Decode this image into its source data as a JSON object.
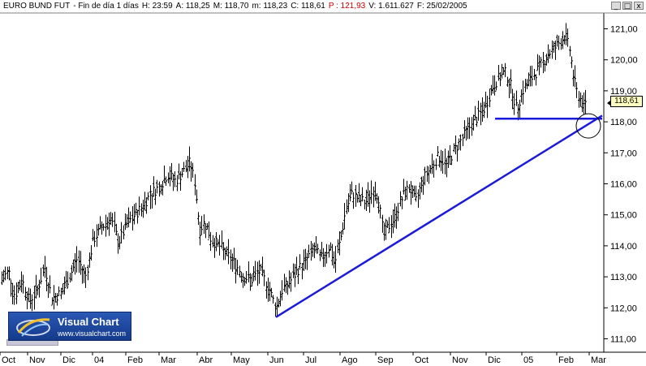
{
  "header": {
    "instrument": "EURO BUND FUT",
    "period": "- Fin de día 1 días",
    "h": "H: 23:59",
    "a": "A: 118,25",
    "m": "M: 118,70",
    "mn": "m: 118,23",
    "c": "C: 118,61",
    "p": "P : 121,93",
    "v": "V: 1.611.627",
    "f": "F: 25/02/2005"
  },
  "window_buttons": [
    "_",
    "□",
    "x"
  ],
  "logo": {
    "title": "Visual Chart",
    "url": "www.visualchart.com"
  },
  "price_tag": "118,61",
  "colors": {
    "bars": "#000000",
    "trendlines": "#1a1adc",
    "header_red": "#cc0000",
    "price_tag_bg": "#ffffc0"
  },
  "chart_data": {
    "type": "ohlc",
    "yticks": [
      "121,00",
      "120,00",
      "119,00",
      "118,00",
      "117,00",
      "116,00",
      "115,00",
      "114,00",
      "113,00",
      "112,00",
      "111,00"
    ],
    "ylim": [
      110.5,
      121.5
    ],
    "xlabels": [
      "Oct",
      "Nov",
      "Dic",
      "04",
      "Feb",
      "Mar",
      "Abr",
      "May",
      "Jun",
      "Jul",
      "Ago",
      "Sep",
      "Oct",
      "Nov",
      "Dic",
      "05",
      "Feb",
      "Mar"
    ],
    "close_path": [
      [
        0,
        112.8
      ],
      [
        10,
        113.2
      ],
      [
        18,
        112.4
      ],
      [
        27,
        112.9
      ],
      [
        36,
        112.2
      ],
      [
        46,
        112.6
      ],
      [
        55,
        113.3
      ],
      [
        64,
        112.3
      ],
      [
        76,
        112.5
      ],
      [
        85,
        113.0
      ],
      [
        95,
        113.6
      ],
      [
        105,
        113.0
      ],
      [
        115,
        114.2
      ],
      [
        125,
        114.6
      ],
      [
        136,
        114.9
      ],
      [
        146,
        114.1
      ],
      [
        156,
        114.7
      ],
      [
        166,
        115.0
      ],
      [
        176,
        115.3
      ],
      [
        186,
        115.7
      ],
      [
        196,
        115.9
      ],
      [
        206,
        116.3
      ],
      [
        216,
        116.1
      ],
      [
        226,
        116.4
      ],
      [
        234,
        116.7
      ],
      [
        240,
        116.0
      ],
      [
        246,
        114.5
      ],
      [
        252,
        114.8
      ],
      [
        260,
        114.2
      ],
      [
        270,
        114.0
      ],
      [
        280,
        113.7
      ],
      [
        290,
        113.4
      ],
      [
        300,
        113.0
      ],
      [
        310,
        112.9
      ],
      [
        320,
        113.2
      ],
      [
        330,
        112.7
      ],
      [
        340,
        112.0
      ],
      [
        348,
        112.6
      ],
      [
        356,
        112.8
      ],
      [
        366,
        113.2
      ],
      [
        376,
        113.5
      ],
      [
        386,
        113.9
      ],
      [
        396,
        113.6
      ],
      [
        406,
        114.0
      ],
      [
        412,
        113.4
      ],
      [
        420,
        114.3
      ],
      [
        426,
        115.2
      ],
      [
        434,
        115.7
      ],
      [
        442,
        115.5
      ],
      [
        450,
        115.4
      ],
      [
        460,
        115.8
      ],
      [
        466,
        115.6
      ],
      [
        472,
        114.3
      ],
      [
        478,
        114.6
      ],
      [
        486,
        114.9
      ],
      [
        496,
        115.6
      ],
      [
        504,
        115.9
      ],
      [
        512,
        115.4
      ],
      [
        520,
        116.1
      ],
      [
        530,
        116.5
      ],
      [
        540,
        116.9
      ],
      [
        550,
        116.6
      ],
      [
        560,
        117.1
      ],
      [
        570,
        117.5
      ],
      [
        580,
        117.9
      ],
      [
        590,
        118.2
      ],
      [
        598,
        118.5
      ],
      [
        606,
        119.1
      ],
      [
        614,
        119.4
      ],
      [
        622,
        119.6
      ],
      [
        630,
        119.1
      ],
      [
        636,
        118.4
      ],
      [
        644,
        119.0
      ],
      [
        652,
        119.3
      ],
      [
        660,
        119.6
      ],
      [
        668,
        119.9
      ],
      [
        676,
        120.2
      ],
      [
        684,
        120.4
      ],
      [
        690,
        120.6
      ],
      [
        696,
        120.8
      ],
      [
        702,
        120.3
      ],
      [
        706,
        119.5
      ],
      [
        710,
        119.0
      ],
      [
        714,
        118.8
      ],
      [
        718,
        118.5
      ],
      [
        722,
        118.6
      ]
    ],
    "trendlines": [
      {
        "from": [
          340,
          111.7
        ],
        "to": [
          742,
          118.2
        ]
      },
      {
        "from": [
          610,
          118.1
        ],
        "to": [
          742,
          118.1
        ]
      }
    ],
    "circle": {
      "x": 722,
      "y": 118.0
    }
  }
}
